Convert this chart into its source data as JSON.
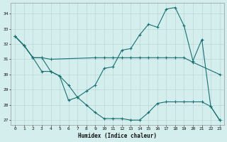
{
  "xlabel": "Humidex (Indice chaleur)",
  "bg_color": "#d4eeee",
  "grid_color": "#b8d8d8",
  "line_color": "#1a7070",
  "xlim": [
    -0.5,
    23.5
  ],
  "ylim": [
    26.7,
    34.7
  ],
  "yticks": [
    27,
    28,
    29,
    30,
    31,
    32,
    33,
    34
  ],
  "xticks": [
    0,
    1,
    2,
    3,
    4,
    5,
    6,
    7,
    8,
    9,
    10,
    11,
    12,
    13,
    14,
    15,
    16,
    17,
    18,
    19,
    20,
    21,
    22,
    23
  ],
  "line1_x": [
    0,
    1,
    2,
    3,
    4,
    5,
    6,
    7,
    8,
    9,
    10,
    11,
    12,
    13,
    14,
    15,
    16,
    17,
    18,
    19,
    20,
    21,
    22,
    23
  ],
  "line1_y": [
    32.5,
    31.9,
    31.1,
    30.2,
    30.2,
    29.9,
    28.3,
    28.5,
    28.9,
    29.3,
    30.4,
    30.5,
    31.6,
    31.7,
    32.6,
    33.3,
    33.1,
    34.3,
    34.4,
    33.2,
    30.9,
    32.3,
    27.9,
    27.0
  ],
  "line2_x": [
    0,
    1,
    2,
    3,
    4,
    9,
    10,
    11,
    12,
    13,
    14,
    15,
    16,
    17,
    18,
    19,
    20,
    23
  ],
  "line2_y": [
    32.5,
    31.9,
    31.1,
    31.1,
    31.0,
    31.1,
    31.1,
    31.1,
    31.1,
    31.1,
    31.1,
    31.1,
    31.1,
    31.1,
    31.1,
    31.1,
    30.8,
    30.0
  ],
  "line3_x": [
    0,
    1,
    2,
    3,
    4,
    5,
    6,
    7,
    8,
    9,
    10,
    11,
    12,
    13,
    14,
    15,
    16,
    17,
    18,
    19,
    20,
    21,
    22,
    23
  ],
  "line3_y": [
    32.5,
    31.9,
    31.1,
    31.1,
    30.2,
    29.9,
    29.3,
    28.5,
    28.0,
    27.5,
    27.1,
    27.1,
    27.1,
    27.0,
    27.0,
    27.5,
    28.1,
    28.2,
    28.2,
    28.2,
    28.2,
    28.2,
    27.9,
    27.0
  ]
}
